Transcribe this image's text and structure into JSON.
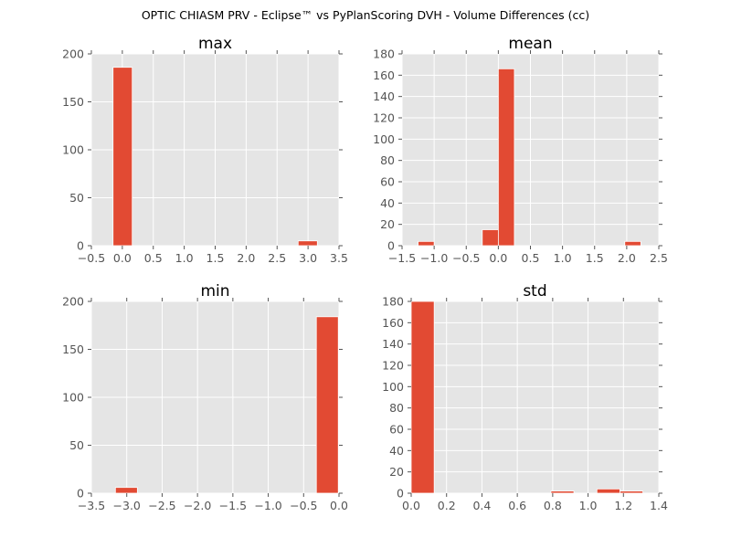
{
  "figure": {
    "title": "OPTIC CHIASM PRV - Eclipse™ vs PyPlanScoring DVH - Volume Differences (cc)"
  },
  "colors": {
    "bar": "#E24A33",
    "axes_bg": "#E5E5E5",
    "grid": "#FFFFFF",
    "text": "#555555",
    "title": "#000000"
  },
  "chart_data": [
    {
      "type": "bar",
      "title": "max",
      "xlim": [
        -0.5,
        3.5
      ],
      "ylim": [
        0,
        200
      ],
      "xticks": [
        "−0.5",
        "0.0",
        "0.5",
        "1.0",
        "1.5",
        "2.0",
        "2.5",
        "3.0",
        "3.5"
      ],
      "xtick_values": [
        -0.5,
        0.0,
        0.5,
        1.0,
        1.5,
        2.0,
        2.5,
        3.0,
        3.5
      ],
      "yticks": [
        "0",
        "50",
        "100",
        "150",
        "200"
      ],
      "ytick_values": [
        0,
        50,
        100,
        150,
        200
      ],
      "bin_edges": [
        -0.15,
        0.165,
        0.48,
        0.795,
        1.11,
        1.425,
        1.74,
        2.055,
        2.37,
        2.685,
        3.0,
        3.15
      ],
      "bin_width": 0.31,
      "bins": [
        {
          "x0": -0.15,
          "x1": 0.16,
          "count": 186
        },
        {
          "x0": 2.84,
          "x1": 3.15,
          "count": 5
        }
      ]
    },
    {
      "type": "bar",
      "title": "mean",
      "xlim": [
        -1.5,
        2.5
      ],
      "ylim": [
        0,
        180
      ],
      "xticks": [
        "−1.5",
        "−1.0",
        "−0.5",
        "0.0",
        "0.5",
        "1.0",
        "1.5",
        "2.0",
        "2.5"
      ],
      "xtick_values": [
        -1.5,
        -1.0,
        -0.5,
        0.0,
        0.5,
        1.0,
        1.5,
        2.0,
        2.5
      ],
      "yticks": [
        "0",
        "20",
        "40",
        "60",
        "80",
        "100",
        "120",
        "140",
        "160",
        "180"
      ],
      "ytick_values": [
        0,
        20,
        40,
        60,
        80,
        100,
        120,
        140,
        160,
        180
      ],
      "bins": [
        {
          "x0": -1.25,
          "x1": -1.0,
          "count": 4
        },
        {
          "x0": -0.25,
          "x1": 0.0,
          "count": 15
        },
        {
          "x0": 0.0,
          "x1": 0.25,
          "count": 166
        },
        {
          "x0": 1.97,
          "x1": 2.22,
          "count": 4
        }
      ]
    },
    {
      "type": "bar",
      "title": "min",
      "xlim": [
        -3.5,
        0.0
      ],
      "ylim": [
        0,
        200
      ],
      "xticks": [
        "−3.5",
        "−3.0",
        "−2.5",
        "−2.0",
        "−1.5",
        "−1.0",
        "−0.5",
        "0.0"
      ],
      "xtick_values": [
        -3.5,
        -3.0,
        -2.5,
        -2.0,
        -1.5,
        -1.0,
        -0.5,
        0.0
      ],
      "yticks": [
        "0",
        "50",
        "100",
        "150",
        "200"
      ],
      "ytick_values": [
        0,
        50,
        100,
        150,
        200
      ],
      "bins": [
        {
          "x0": -3.16,
          "x1": -2.85,
          "count": 6
        },
        {
          "x0": -0.32,
          "x1": -0.01,
          "count": 184
        }
      ]
    },
    {
      "type": "bar",
      "title": "std",
      "xlim": [
        0.0,
        1.4
      ],
      "ylim": [
        0,
        180
      ],
      "xticks": [
        "0.0",
        "0.2",
        "0.4",
        "0.6",
        "0.8",
        "1.0",
        "1.2",
        "1.4"
      ],
      "xtick_values": [
        0.0,
        0.2,
        0.4,
        0.6,
        0.8,
        1.0,
        1.2,
        1.4
      ],
      "yticks": [
        "0",
        "20",
        "40",
        "60",
        "80",
        "100",
        "120",
        "140",
        "160",
        "180"
      ],
      "ytick_values": [
        0,
        20,
        40,
        60,
        80,
        100,
        120,
        140,
        160,
        180
      ],
      "bins": [
        {
          "x0": 0.0,
          "x1": 0.13,
          "count": 180
        },
        {
          "x0": 0.79,
          "x1": 0.92,
          "count": 2
        },
        {
          "x0": 1.05,
          "x1": 1.18,
          "count": 4
        },
        {
          "x0": 1.18,
          "x1": 1.31,
          "count": 2
        }
      ]
    }
  ]
}
